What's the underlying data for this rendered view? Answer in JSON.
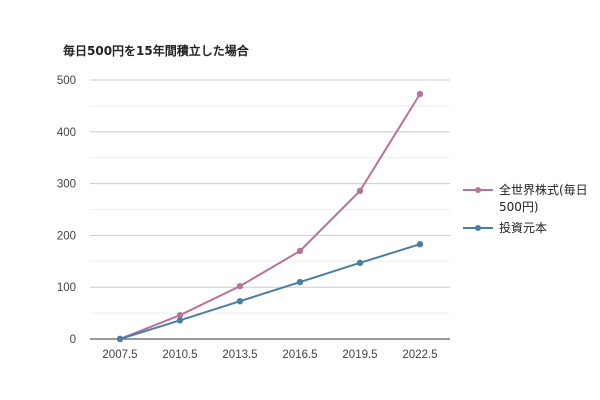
{
  "chart_data": {
    "type": "line",
    "title": "毎日500円を15年間積立した場合",
    "xlabel": "",
    "ylabel": "",
    "x": [
      2007.5,
      2010.5,
      2013.5,
      2016.5,
      2019.5,
      2022.5
    ],
    "x_tick_labels": [
      "2007.5",
      "2010.5",
      "2013.5",
      "2016.5",
      "2019.5",
      "2022.5"
    ],
    "y_tick_labels": [
      "0",
      "100",
      "200",
      "300",
      "400",
      "500"
    ],
    "ylim": [
      0,
      500
    ],
    "grid": true,
    "legend_position": "right",
    "series": [
      {
        "name": "全世界株式(毎日500円)",
        "color": "#b8739a",
        "values": [
          0,
          46,
          102,
          170,
          286,
          473
        ]
      },
      {
        "name": "投資元本",
        "color": "#4a7fa3",
        "values": [
          0,
          36,
          73,
          110,
          147,
          183
        ]
      }
    ]
  }
}
